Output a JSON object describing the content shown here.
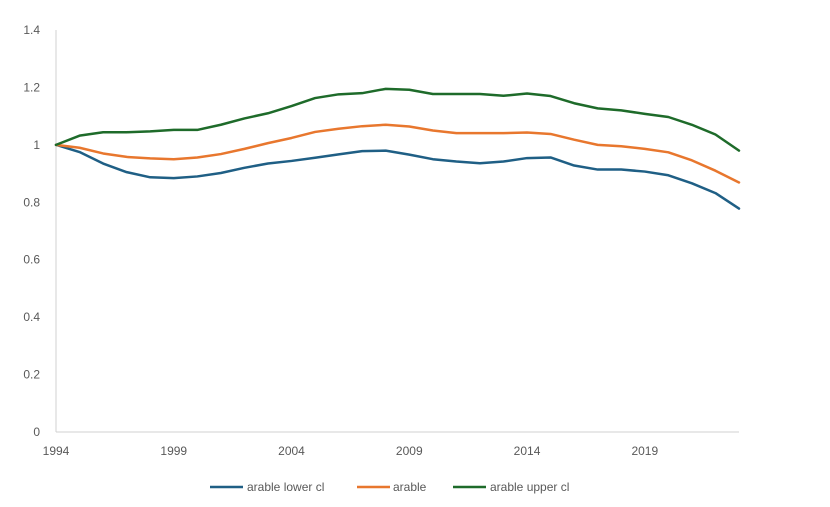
{
  "chart_data": {
    "type": "line",
    "x": [
      1994,
      1995,
      1996,
      1997,
      1998,
      1999,
      2000,
      2001,
      2002,
      2003,
      2004,
      2005,
      2006,
      2007,
      2008,
      2009,
      2010,
      2011,
      2012,
      2013,
      2014,
      2015,
      2016,
      2017,
      2018,
      2019,
      2020,
      2021,
      2022,
      2023
    ],
    "xticks": [
      "1994",
      "1999",
      "2004",
      "2009",
      "2014",
      "2019"
    ],
    "yticks": [
      "0",
      "0.2",
      "0.4",
      "0.6",
      "0.8",
      "1",
      "1.2",
      "1.4"
    ],
    "ylim": [
      0,
      1.4
    ],
    "xlim": [
      1994,
      2023
    ],
    "grid": false,
    "legend_position": "bottom",
    "series": [
      {
        "name": "arable lower cl",
        "color": "#1f5f85",
        "values": [
          1.0,
          0.975,
          0.935,
          0.905,
          0.887,
          0.884,
          0.89,
          0.902,
          0.92,
          0.935,
          0.944,
          0.955,
          0.967,
          0.978,
          0.98,
          0.966,
          0.95,
          0.942,
          0.936,
          0.942,
          0.954,
          0.956,
          0.928,
          0.914,
          0.914,
          0.907,
          0.894,
          0.866,
          0.832,
          0.778
        ]
      },
      {
        "name": "arable",
        "color": "#e8772e",
        "values": [
          1.0,
          0.99,
          0.97,
          0.958,
          0.953,
          0.95,
          0.956,
          0.968,
          0.986,
          1.006,
          1.024,
          1.045,
          1.056,
          1.065,
          1.07,
          1.064,
          1.05,
          1.041,
          1.041,
          1.041,
          1.043,
          1.038,
          1.018,
          1.0,
          0.995,
          0.986,
          0.974,
          0.946,
          0.91,
          0.869
        ]
      },
      {
        "name": "arable upper cl",
        "color": "#1e6b2a",
        "values": [
          1.0,
          1.032,
          1.044,
          1.044,
          1.047,
          1.052,
          1.052,
          1.07,
          1.092,
          1.11,
          1.135,
          1.163,
          1.176,
          1.18,
          1.195,
          1.192,
          1.177,
          1.177,
          1.177,
          1.171,
          1.179,
          1.17,
          1.145,
          1.127,
          1.12,
          1.108,
          1.097,
          1.07,
          1.036,
          0.98
        ]
      }
    ]
  }
}
